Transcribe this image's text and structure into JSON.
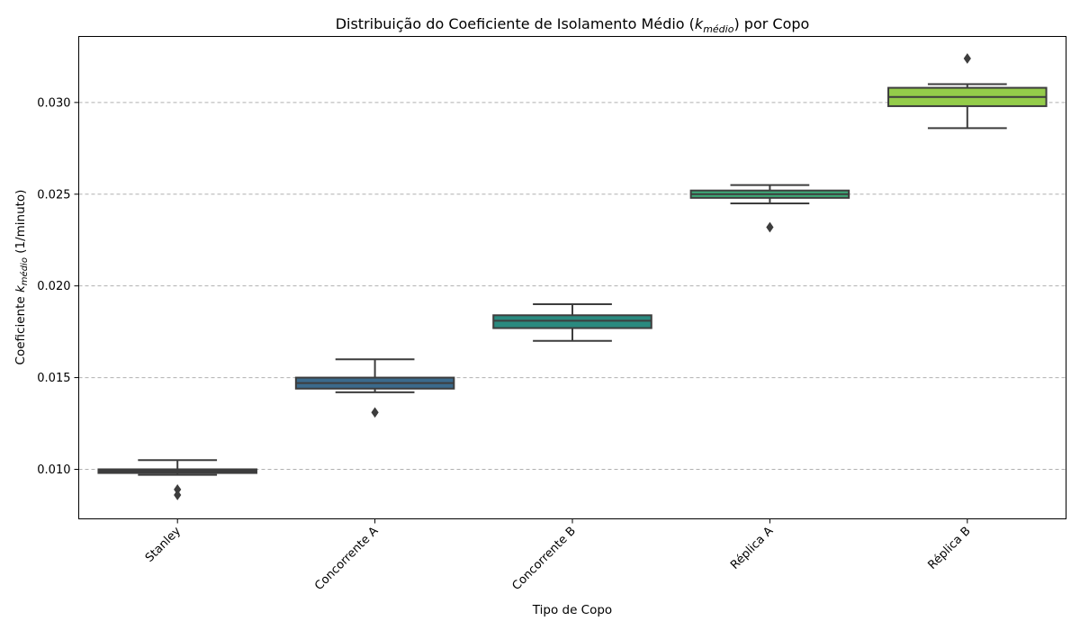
{
  "chart_data": {
    "type": "box",
    "title": {
      "prefix": "Distribuição do Coeficiente de Isolamento Médio (",
      "k": "k",
      "subscript": "médio",
      "suffix": ") por Copo"
    },
    "xlabel": "Tipo de Copo",
    "ylabel": {
      "prefix": "Coeficiente ",
      "k": "k",
      "subscript": "médio",
      "suffix": " (1/minuto)"
    },
    "ylim": [
      0.0073,
      0.0336
    ],
    "yticks": [
      0.01,
      0.015,
      0.02,
      0.025,
      0.03
    ],
    "ytick_labels": [
      "0.010",
      "0.015",
      "0.020",
      "0.025",
      "0.030"
    ],
    "grid": "y-dashed",
    "categories": [
      "Stanley",
      "Concorrente A",
      "Concorrente B",
      "Réplica A",
      "Réplica B"
    ],
    "boxes": [
      {
        "label": "Stanley",
        "color": "#3b3b5a",
        "whisker_low": 0.0097,
        "q1": 0.0098,
        "median": 0.0099,
        "q3": 0.01,
        "whisker_high": 0.0105,
        "outliers": [
          0.0089,
          0.0086
        ]
      },
      {
        "label": "Concorrente A",
        "color": "#3b6a8c",
        "whisker_low": 0.0142,
        "q1": 0.0144,
        "median": 0.0147,
        "q3": 0.015,
        "whisker_high": 0.016,
        "outliers": [
          0.0131
        ]
      },
      {
        "label": "Concorrente B",
        "color": "#2a8a7f",
        "whisker_low": 0.017,
        "q1": 0.0177,
        "median": 0.0181,
        "q3": 0.0184,
        "whisker_high": 0.019,
        "outliers": []
      },
      {
        "label": "Réplica A",
        "color": "#3daa78",
        "whisker_low": 0.0245,
        "q1": 0.0248,
        "median": 0.025,
        "q3": 0.0252,
        "whisker_high": 0.0255,
        "outliers": [
          0.0232
        ]
      },
      {
        "label": "Réplica B",
        "color": "#94cc4a",
        "whisker_low": 0.0286,
        "q1": 0.0298,
        "median": 0.0303,
        "q3": 0.0308,
        "whisker_high": 0.031,
        "outliers": [
          0.0324
        ]
      }
    ]
  }
}
